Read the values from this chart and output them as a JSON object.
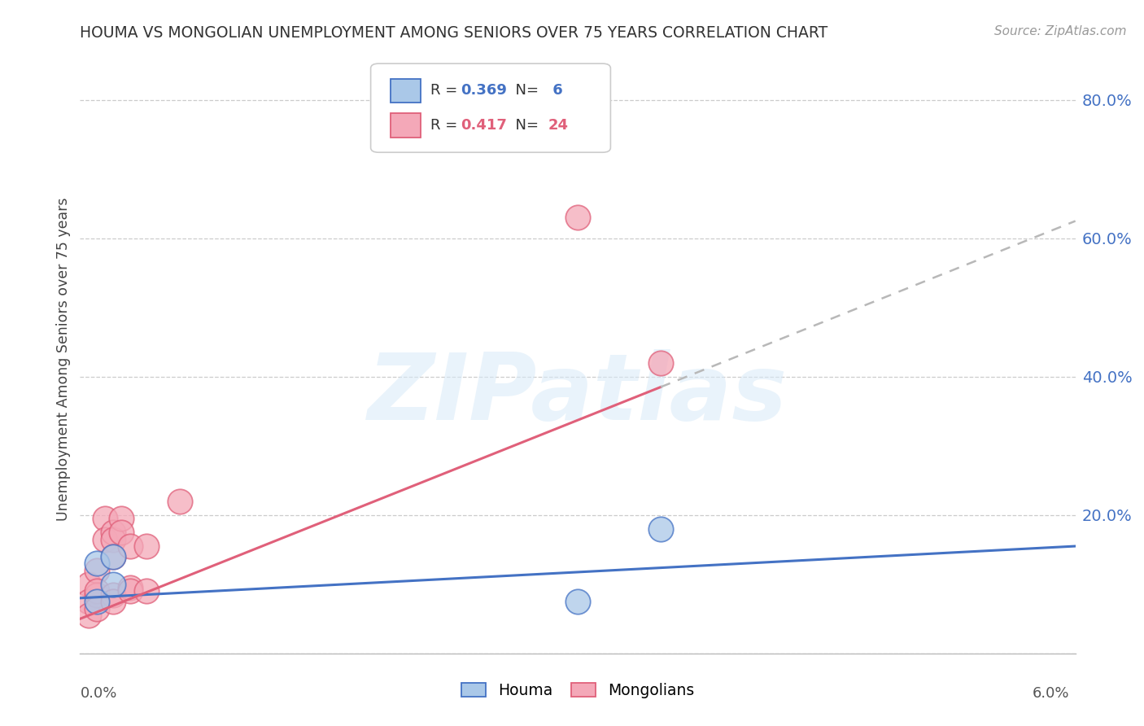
{
  "title": "HOUMA VS MONGOLIAN UNEMPLOYMENT AMONG SENIORS OVER 75 YEARS CORRELATION CHART",
  "source": "Source: ZipAtlas.com",
  "ylabel": "Unemployment Among Seniors over 75 years",
  "xlim": [
    0.0,
    0.06
  ],
  "ylim": [
    0.0,
    0.85
  ],
  "yticks": [
    0.0,
    0.2,
    0.4,
    0.6,
    0.8
  ],
  "ytick_labels": [
    "",
    "20.0%",
    "40.0%",
    "60.0%",
    "80.0%"
  ],
  "houma_R": 0.369,
  "houma_N": 6,
  "mongolian_R": 0.417,
  "mongolian_N": 24,
  "houma_color": "#aac8e8",
  "mongolian_color": "#f4a8b8",
  "houma_line_color": "#4472c4",
  "mongolian_line_color": "#e0607a",
  "dashed_line_color": "#b8b8b8",
  "houma_points": [
    [
      0.001,
      0.13
    ],
    [
      0.001,
      0.075
    ],
    [
      0.002,
      0.14
    ],
    [
      0.002,
      0.1
    ],
    [
      0.03,
      0.075
    ],
    [
      0.035,
      0.18
    ]
  ],
  "mongolian_points": [
    [
      0.0005,
      0.1
    ],
    [
      0.0005,
      0.075
    ],
    [
      0.0005,
      0.055
    ],
    [
      0.001,
      0.12
    ],
    [
      0.001,
      0.085
    ],
    [
      0.001,
      0.09
    ],
    [
      0.001,
      0.065
    ],
    [
      0.0015,
      0.195
    ],
    [
      0.0015,
      0.165
    ],
    [
      0.002,
      0.175
    ],
    [
      0.002,
      0.165
    ],
    [
      0.002,
      0.14
    ],
    [
      0.002,
      0.085
    ],
    [
      0.002,
      0.075
    ],
    [
      0.0025,
      0.195
    ],
    [
      0.0025,
      0.175
    ],
    [
      0.003,
      0.155
    ],
    [
      0.003,
      0.095
    ],
    [
      0.003,
      0.09
    ],
    [
      0.004,
      0.155
    ],
    [
      0.004,
      0.09
    ],
    [
      0.006,
      0.22
    ],
    [
      0.03,
      0.63
    ],
    [
      0.035,
      0.42
    ]
  ],
  "houma_trend": [
    0.0,
    0.06,
    0.08,
    0.155
  ],
  "mongolian_trend_solid": [
    0.0,
    0.035,
    0.05,
    0.385
  ],
  "mongolian_trend_dash": [
    0.035,
    0.06,
    0.385,
    0.625
  ],
  "background_color": "#ffffff",
  "grid_color": "#cccccc",
  "watermark_text": "ZIPatlas",
  "watermark_color": "#d8eaf8",
  "legend_houma_label": "Houma",
  "legend_mongolian_label": "Mongolians"
}
